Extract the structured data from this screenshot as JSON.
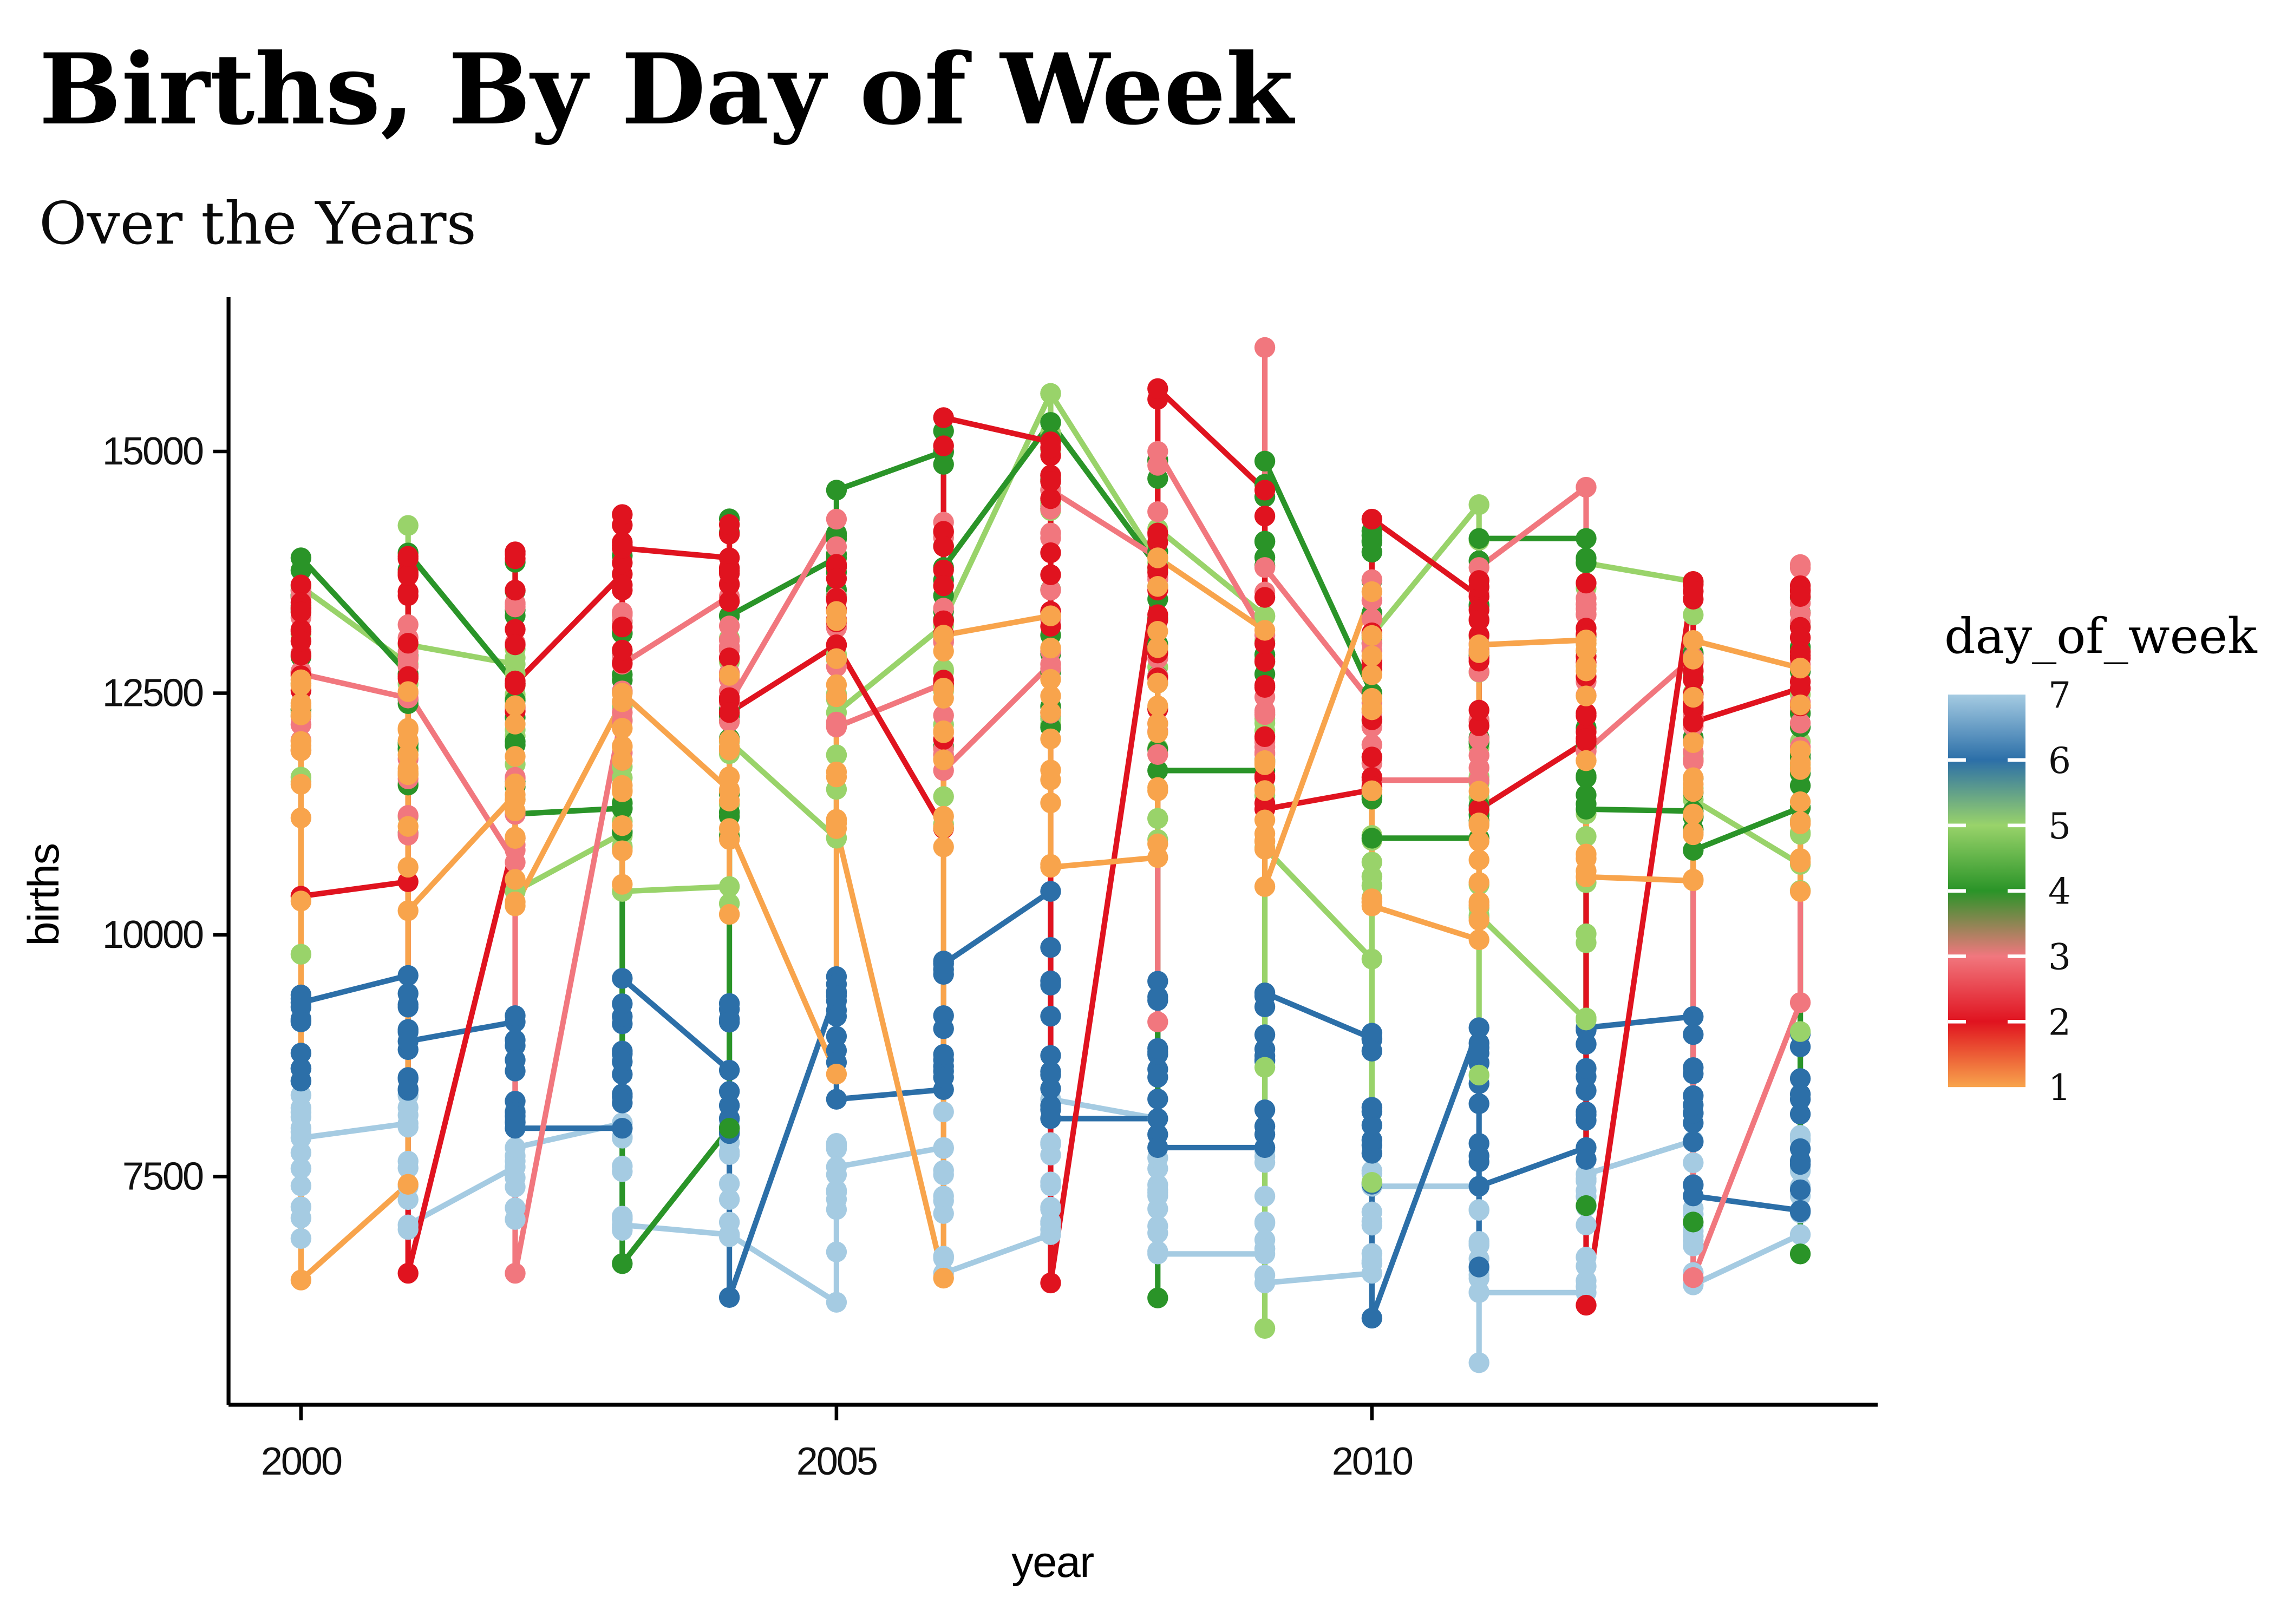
{
  "title": "Births, By Day of Week",
  "subtitle": "Over the Years",
  "chart_data": {
    "type": "scatter",
    "title": "Births, By Day of Week",
    "subtitle": "Over the Years",
    "xlabel": "year",
    "ylabel": "births",
    "x_ticks": [
      2000,
      2005,
      2010
    ],
    "y_ticks": [
      7500,
      10000,
      12500,
      15000
    ],
    "x_range": [
      1999.3,
      2014.7
    ],
    "y_range": [
      5050,
      16600
    ],
    "grid": "off",
    "points_per_group_per_year": 12,
    "line_grouping": "day_of_week; within-year vertical zigzag, December-to-January diagonals",
    "legend": {
      "title": "day_of_week",
      "position": "right",
      "labels": [
        "7",
        "6",
        "5",
        "4",
        "3",
        "2",
        "1"
      ]
    },
    "day_colors": {
      "1": "#F8A44C",
      "2": "#E0131F",
      "3": "#F1777E",
      "4": "#2A9428",
      "5": "#99D36A",
      "6": "#2C6FA8",
      "7": "#A5CBE2"
    },
    "series": [
      {
        "year": 2000,
        "day": 1,
        "band": [
          10900,
          12650
        ],
        "jan": 12000,
        "dec": 6430,
        "extras": [
          10350
        ]
      },
      {
        "year": 2000,
        "day": 2,
        "band": [
          12500,
          14050
        ],
        "dec": 10400
      },
      {
        "year": 2000,
        "day": 3,
        "band": [
          11800,
          13650
        ],
        "dec": 12700
      },
      {
        "year": 2000,
        "day": 4,
        "band": [
          12200,
          14000
        ],
        "dec": 13900
      },
      {
        "year": 2000,
        "day": 5,
        "band": [
          11500,
          13700
        ],
        "dec": 13600,
        "extras": [
          9800
        ]
      },
      {
        "year": 2000,
        "day": 6,
        "band": [
          8400,
          9500
        ],
        "dec": 9300
      },
      {
        "year": 2000,
        "day": 7,
        "band": [
          7000,
          8600
        ],
        "dec": 7900,
        "extras": [
          6860
        ]
      },
      {
        "year": 2001,
        "day": 1,
        "band": [
          10900,
          12600
        ],
        "jan": 7420,
        "dec": 10250,
        "extras": [
          10700
        ]
      },
      {
        "year": 2001,
        "day": 2,
        "band": [
          12400,
          14200
        ],
        "jan": 10550,
        "dec": 6500
      },
      {
        "year": 2001,
        "day": 3,
        "band": [
          11000,
          13600
        ],
        "jan": 12450,
        "dec": 12500,
        "extras": [
          11050
        ]
      },
      {
        "year": 2001,
        "day": 4,
        "band": [
          11000,
          14000
        ],
        "jan": 12700,
        "dec": 13950
      },
      {
        "year": 2001,
        "day": 5,
        "band": [
          11200,
          14250
        ],
        "jan": 12800,
        "dec": 13000
      },
      {
        "year": 2001,
        "day": 6,
        "band": [
          8300,
          9600
        ],
        "jan": 9580,
        "dec": 8900
      },
      {
        "year": 2001,
        "day": 7,
        "band": [
          6940,
          8500
        ],
        "jan": 8050,
        "dec": 7000
      },
      {
        "year": 2002,
        "day": 1,
        "band": [
          10300,
          12600
        ],
        "jan": 11450,
        "dec": 10300
      },
      {
        "year": 2002,
        "day": 2,
        "band": [
          12300,
          14250
        ],
        "jan": 11000,
        "dec": 12600
      },
      {
        "year": 2002,
        "day": 3,
        "band": [
          10750,
          13500
        ],
        "jan": 10750,
        "dec": 6500
      },
      {
        "year": 2002,
        "day": 4,
        "band": [
          11250,
          14000
        ],
        "jan": 12600,
        "dec": 11250
      },
      {
        "year": 2002,
        "day": 5,
        "band": [
          10750,
          14100
        ],
        "jan": 12800,
        "dec": 10450
      },
      {
        "year": 2002,
        "day": 6,
        "band": [
          7800,
          9200
        ],
        "jan": 9100,
        "dec": 8000
      },
      {
        "year": 2002,
        "day": 7,
        "band": [
          6900,
          8200
        ],
        "jan": 7600,
        "dec": 7800
      },
      {
        "year": 2003,
        "day": 1,
        "band": [
          10300,
          12500
        ],
        "dec": 12500
      },
      {
        "year": 2003,
        "day": 2,
        "band": [
          12400,
          14700
        ],
        "dec": 14000
      },
      {
        "year": 2003,
        "day": 3,
        "band": [
          11800,
          13600
        ],
        "jan": 12300,
        "dec": 12800
      },
      {
        "year": 2003,
        "day": 4,
        "band": [
          11050,
          14500
        ],
        "dec": 6600
      },
      {
        "year": 2003,
        "day": 5,
        "band": [
          10450,
          13100
        ],
        "jan": 11050,
        "dec": 10450
      },
      {
        "year": 2003,
        "day": 6,
        "band": [
          8000,
          9650
        ],
        "jan": 8000,
        "dec": 9550
      },
      {
        "year": 2003,
        "day": 7,
        "band": [
          6900,
          8300
        ],
        "jan": 8050,
        "dec": 7000
      },
      {
        "year": 2004,
        "day": 1,
        "band": [
          10200,
          12700
        ],
        "jan": 11500,
        "dec": 11100
      },
      {
        "year": 2004,
        "day": 2,
        "band": [
          12300,
          14430
        ],
        "jan": 13900,
        "dec": 12300
      },
      {
        "year": 2004,
        "day": 3,
        "band": [
          12150,
          13680
        ],
        "jan": 13500,
        "dec": 12400
      },
      {
        "year": 2004,
        "day": 4,
        "band": [
          10950,
          14550
        ],
        "jan": 8000,
        "dec": 13300
      },
      {
        "year": 2004,
        "day": 5,
        "band": [
          10100,
          13100
        ],
        "jan": 10500,
        "dec": 12000
      },
      {
        "year": 2004,
        "day": 6,
        "band": [
          7900,
          9300
        ],
        "jan": 8600,
        "dec": 6250
      },
      {
        "year": 2004,
        "day": 7,
        "band": [
          6800,
          8200
        ],
        "jan": 6900,
        "dec": 6900
      },
      {
        "year": 2005,
        "day": 1,
        "band": [
          10900,
          13400
        ],
        "jan": 8560,
        "dec": 11100
      },
      {
        "year": 2005,
        "day": 2,
        "band": [
          12900,
          14600
        ],
        "jan": 13000,
        "dec": 13000
      },
      {
        "year": 2005,
        "day": 3,
        "band": [
          12150,
          14430
        ],
        "jan": 14300,
        "dec": 12150
      },
      {
        "year": 2005,
        "day": 4,
        "band": [
          12800,
          14800
        ],
        "jan": 13900,
        "dec": 14600
      },
      {
        "year": 2005,
        "day": 5,
        "band": [
          11000,
          13250
        ],
        "jan": 11000,
        "dec": 12300
      },
      {
        "year": 2005,
        "day": 6,
        "band": [
          8300,
          9600
        ],
        "jan": 9400,
        "dec": 8300
      },
      {
        "year": 2005,
        "day": 7,
        "band": [
          6200,
          8100
        ],
        "jan": 6200,
        "dec": 7600
      },
      {
        "year": 2006,
        "day": 1,
        "band": [
          10300,
          13100
        ],
        "jan": 6450,
        "dec": 13100
      },
      {
        "year": 2006,
        "day": 2,
        "band": [
          12000,
          15350
        ],
        "jan": 11100,
        "dec": 15350
      },
      {
        "year": 2006,
        "day": 3,
        "band": [
          11700,
          14400
        ],
        "jan": 12600,
        "dec": 11700
      },
      {
        "year": 2006,
        "day": 4,
        "band": [
          11700,
          15450
        ],
        "jan": 15000,
        "dec": 13800
      },
      {
        "year": 2006,
        "day": 5,
        "band": [
          11100,
          13250
        ],
        "jan": 13200,
        "dec": 13250
      },
      {
        "year": 2006,
        "day": 6,
        "band": [
          8300,
          9800
        ],
        "jan": 8400,
        "dec": 9700
      },
      {
        "year": 2006,
        "day": 7,
        "band": [
          6500,
          8300
        ],
        "jan": 7800,
        "dec": 6500
      },
      {
        "year": 2007,
        "day": 1,
        "band": [
          10700,
          13300
        ],
        "jan": 13300,
        "dec": 10700
      },
      {
        "year": 2007,
        "day": 2,
        "band": [
          12500,
          15100
        ],
        "jan": 15100,
        "dec": 6400
      },
      {
        "year": 2007,
        "day": 3,
        "band": [
          11800,
          14600
        ],
        "jan": 12800,
        "dec": 14600
      },
      {
        "year": 2007,
        "day": 4,
        "band": [
          11800,
          15300
        ],
        "jan": 15300,
        "dec": 15300
      },
      {
        "year": 2007,
        "day": 5,
        "band": [
          11700,
          15600
        ],
        "jan": 15600,
        "dec": 15600
      },
      {
        "year": 2007,
        "day": 6,
        "band": [
          8100,
          9900
        ],
        "jan": 10450,
        "dec": 8100
      },
      {
        "year": 2007,
        "day": 7,
        "band": [
          6900,
          8300
        ],
        "jan": 6900,
        "dec": 8300
      },
      {
        "year": 2008,
        "day": 1,
        "band": [
          10800,
          13900
        ],
        "jan": 10800,
        "dec": 13900
      },
      {
        "year": 2008,
        "day": 2,
        "band": [
          12200,
          15650
        ],
        "jan": 13800,
        "dec": 15650
      },
      {
        "year": 2008,
        "day": 3,
        "band": [
          11700,
          15000
        ],
        "jan": 13900,
        "dec": 15000,
        "extras": [
          9100
        ]
      },
      {
        "year": 2008,
        "day": 4,
        "band": [
          11700,
          15100
        ],
        "jan": 13800,
        "dec": 11700,
        "extras": [
          6245
        ]
      },
      {
        "year": 2008,
        "day": 5,
        "band": [
          10900,
          14200
        ],
        "jan": 13850,
        "dec": 14200
      },
      {
        "year": 2008,
        "day": 6,
        "band": [
          7800,
          9600
        ],
        "jan": 8100,
        "dec": 7800
      },
      {
        "year": 2008,
        "day": 7,
        "band": [
          6700,
          8100
        ],
        "jan": 8100,
        "dec": 6700
      },
      {
        "year": 2009,
        "day": 1,
        "band": [
          10500,
          13200
        ],
        "jan": 13150,
        "dec": 10500
      },
      {
        "year": 2009,
        "day": 2,
        "band": [
          11300,
          14600
        ],
        "jan": 14600,
        "dec": 11300
      },
      {
        "year": 2009,
        "day": 3,
        "band": [
          11600,
          14000
        ],
        "jan": 13100,
        "dec": 13800,
        "extras": [
          16075
        ]
      },
      {
        "year": 2009,
        "day": 4,
        "band": [
          11700,
          14900
        ],
        "jan": 11700,
        "dec": 14900
      },
      {
        "year": 2009,
        "day": 5,
        "band": [
          10900,
          13300
        ],
        "jan": 13300,
        "dec": 10900,
        "extras": [
          5930,
          8630
        ]
      },
      {
        "year": 2009,
        "day": 6,
        "band": [
          7800,
          9400
        ],
        "jan": 7800,
        "dec": 9400
      },
      {
        "year": 2009,
        "day": 7,
        "band": [
          6400,
          7800
        ],
        "jan": 6700,
        "dec": 6400
      },
      {
        "year": 2010,
        "day": 1,
        "band": [
          10300,
          13550
        ],
        "jan": 13550,
        "dec": 10300
      },
      {
        "year": 2010,
        "day": 2,
        "band": [
          11500,
          14300
        ],
        "jan": 11500,
        "dec": 14300
      },
      {
        "year": 2010,
        "day": 3,
        "band": [
          11600,
          13800
        ],
        "jan": 12400,
        "dec": 11600
      },
      {
        "year": 2010,
        "day": 4,
        "band": [
          11000,
          14200
        ],
        "jan": 12500,
        "dec": 11000
      },
      {
        "year": 2010,
        "day": 5,
        "band": [
          9750,
          13100
        ],
        "jan": 9750,
        "dec": 13100,
        "extras": [
          7440
        ]
      },
      {
        "year": 2010,
        "day": 6,
        "band": [
          7300,
          9000
        ],
        "jan": 8930,
        "dec": 6036
      },
      {
        "year": 2010,
        "day": 7,
        "band": [
          6490,
          7750
        ],
        "jan": 6500,
        "dec": 7400
      },
      {
        "year": 2011,
        "day": 1,
        "band": [
          9950,
          13000
        ],
        "jan": 9950,
        "dec": 13000
      },
      {
        "year": 2011,
        "day": 2,
        "band": [
          11300,
          14000
        ],
        "jan": 13500,
        "dec": 11300
      },
      {
        "year": 2011,
        "day": 3,
        "band": [
          11500,
          13800
        ],
        "jan": 11600,
        "dec": 13800
      },
      {
        "year": 2011,
        "day": 4,
        "band": [
          11000,
          14100
        ],
        "jan": 11000,
        "dec": 14100
      },
      {
        "year": 2011,
        "day": 5,
        "band": [
          10200,
          14450
        ],
        "jan": 14450,
        "dec": 10200,
        "extras": [
          8550,
          10180
        ]
      },
      {
        "year": 2011,
        "day": 6,
        "band": [
          7400,
          9040
        ],
        "jan": 9040,
        "dec": 7400,
        "extras": [
          6565
        ]
      },
      {
        "year": 2011,
        "day": 7,
        "band": [
          6300,
          7400
        ],
        "jan": 7400,
        "dec": 6300,
        "extras": [
          5575
        ]
      },
      {
        "year": 2012,
        "day": 1,
        "band": [
          10600,
          13050
        ],
        "jan": 13050,
        "dec": 10600
      },
      {
        "year": 2012,
        "day": 2,
        "band": [
          12000,
          13700
        ],
        "jan": 12000,
        "dec": 6170
      },
      {
        "year": 2012,
        "day": 3,
        "band": [
          11900,
          13680
        ],
        "jan": 14630,
        "dec": 11900
      },
      {
        "year": 2012,
        "day": 4,
        "band": [
          11300,
          14090
        ],
        "jan": 14100,
        "dec": 11300,
        "extras": [
          7200
        ]
      },
      {
        "year": 2012,
        "day": 5,
        "band": [
          9120,
          13845
        ],
        "jan": 9120,
        "dec": 13845
      },
      {
        "year": 2012,
        "day": 6,
        "band": [
          7670,
          9040
        ],
        "jan": 7800,
        "dec": 9040
      },
      {
        "year": 2012,
        "day": 7,
        "band": [
          6300,
          7525
        ],
        "jan": 6300,
        "dec": 7525
      },
      {
        "year": 2013,
        "day": 1,
        "band": [
          10560,
          13045
        ],
        "jan": 10560,
        "dec": 13045
      },
      {
        "year": 2013,
        "day": 2,
        "band": [
          12200,
          13655
        ],
        "jan": 13655,
        "dec": 12200
      },
      {
        "year": 2013,
        "day": 3,
        "band": [
          11600,
          12870
        ],
        "jan": 12870,
        "dec": 6455
      },
      {
        "year": 2013,
        "day": 4,
        "band": [
          10875,
          13320
        ],
        "jan": 11280,
        "dec": 10875,
        "extras": [
          7030
        ]
      },
      {
        "year": 2013,
        "day": 5,
        "band": [
          11400,
          13655
        ],
        "jan": 13655,
        "dec": 11400
      },
      {
        "year": 2013,
        "day": 6,
        "band": [
          7300,
          9155
        ],
        "jan": 9155,
        "dec": 7300
      },
      {
        "year": 2013,
        "day": 7,
        "band": [
          6380,
          7870
        ],
        "jan": 7870,
        "dec": 6380
      },
      {
        "year": 2014,
        "day": 1,
        "band": [
          10400,
          12760
        ],
        "jan": 12760,
        "dec": 11170
      },
      {
        "year": 2014,
        "day": 2,
        "band": [
          12295,
          13630
        ],
        "jan": 12550,
        "dec": 13500
      },
      {
        "year": 2014,
        "day": 3,
        "band": [
          11890,
          13830
        ],
        "jan": 9300,
        "dec": 13830
      },
      {
        "year": 2014,
        "day": 4,
        "band": [
          11315,
          13490
        ],
        "jan": 11315,
        "dec": 13490,
        "extras": [
          6700
        ]
      },
      {
        "year": 2014,
        "day": 5,
        "band": [
          10350,
          13100
        ],
        "jan": 10730,
        "dec": 12000,
        "extras": [
          9000
        ]
      },
      {
        "year": 2014,
        "day": 6,
        "band": [
          7100,
          9000
        ],
        "jan": 7150,
        "dec": 8300
      },
      {
        "year": 2014,
        "day": 7,
        "band": [
          6900,
          8100
        ],
        "jan": 6900,
        "dec": 7300
      }
    ]
  }
}
